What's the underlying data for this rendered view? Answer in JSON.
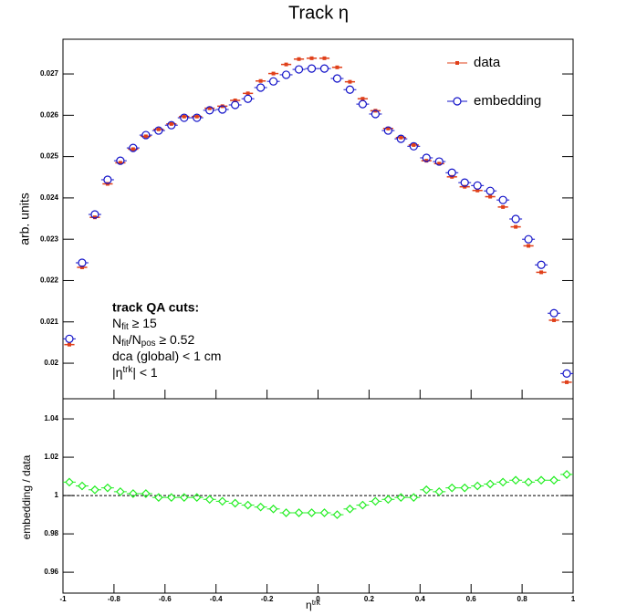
{
  "chart_data": [
    {
      "type": "scatter",
      "title": "Track η",
      "y_label": "arb. units",
      "x": [
        -0.975,
        -0.925,
        -0.875,
        -0.825,
        -0.775,
        -0.725,
        -0.675,
        -0.625,
        -0.575,
        -0.525,
        -0.475,
        -0.425,
        -0.375,
        -0.325,
        -0.275,
        -0.225,
        -0.175,
        -0.125,
        -0.075,
        -0.025,
        0.025,
        0.075,
        0.125,
        0.175,
        0.225,
        0.275,
        0.325,
        0.375,
        0.425,
        0.475,
        0.525,
        0.575,
        0.625,
        0.675,
        0.725,
        0.775,
        0.825,
        0.875,
        0.925,
        0.975
      ],
      "series": [
        {
          "name": "data",
          "color": "#e0401a",
          "marker": "square",
          "values": [
            0.02045,
            0.02232,
            0.02353,
            0.02434,
            0.02485,
            0.02518,
            0.02549,
            0.02566,
            0.02579,
            0.02597,
            0.02597,
            0.02617,
            0.02622,
            0.02636,
            0.02653,
            0.02683,
            0.02701,
            0.02723,
            0.02736,
            0.02738,
            0.02738,
            0.02716,
            0.02681,
            0.0264,
            0.02611,
            0.02568,
            0.02546,
            0.02528,
            0.0249,
            0.02483,
            0.02451,
            0.02427,
            0.02418,
            0.02403,
            0.02378,
            0.0233,
            0.02284,
            0.0222,
            0.02104,
            0.01954
          ]
        },
        {
          "name": "embedding",
          "color": "#1010c8",
          "marker": "circle",
          "values": [
            0.02059,
            0.02243,
            0.0236,
            0.02444,
            0.0249,
            0.02521,
            0.02552,
            0.02563,
            0.02576,
            0.02594,
            0.02594,
            0.02612,
            0.02614,
            0.02625,
            0.0264,
            0.02667,
            0.02682,
            0.02698,
            0.02711,
            0.02713,
            0.02713,
            0.02689,
            0.02662,
            0.02627,
            0.02603,
            0.02563,
            0.02543,
            0.02525,
            0.02497,
            0.02488,
            0.02461,
            0.02437,
            0.0243,
            0.02417,
            0.02395,
            0.02349,
            0.023,
            0.02238,
            0.02121,
            0.01975
          ]
        }
      ],
      "xlim": [
        -1,
        1
      ],
      "xticks": [
        -1,
        -0.8,
        -0.6,
        -0.4,
        -0.2,
        0,
        0.2,
        0.4,
        0.6,
        0.8,
        1
      ],
      "ylim": [
        0.01914,
        0.02784
      ],
      "yticks": [
        0.02,
        0.021,
        0.022,
        0.023,
        0.024,
        0.025,
        0.026,
        0.027
      ],
      "legend": "top-right",
      "annotation": {
        "title": "track QA cuts:",
        "lines": [
          [
            {
              "text": "N"
            },
            {
              "text": "fit",
              "sub": true
            },
            {
              "text": " ≥ 15"
            }
          ],
          [
            {
              "text": "N"
            },
            {
              "text": "fit",
              "sub": true
            },
            {
              "text": "/N"
            },
            {
              "text": "pos",
              "sub": true
            },
            {
              "text": " ≥ 0.52"
            }
          ],
          [
            {
              "text": "dca (global) < 1 cm"
            }
          ],
          [
            {
              "text": "|η"
            },
            {
              "text": "trk",
              "sup": true
            },
            {
              "text": "| < 1"
            }
          ]
        ]
      }
    },
    {
      "type": "scatter",
      "y_label": "embedding / data",
      "x_label": [
        {
          "text": "η"
        },
        {
          "text": "trk",
          "sup": true
        }
      ],
      "x": [
        -0.975,
        -0.925,
        -0.875,
        -0.825,
        -0.775,
        -0.725,
        -0.675,
        -0.625,
        -0.575,
        -0.525,
        -0.475,
        -0.425,
        -0.375,
        -0.325,
        -0.275,
        -0.225,
        -0.175,
        -0.125,
        -0.075,
        -0.025,
        0.025,
        0.075,
        0.125,
        0.175,
        0.225,
        0.275,
        0.325,
        0.375,
        0.425,
        0.475,
        0.525,
        0.575,
        0.625,
        0.675,
        0.725,
        0.775,
        0.825,
        0.875,
        0.925,
        0.975
      ],
      "color": "#22ee22",
      "values": [
        1.007,
        1.005,
        1.003,
        1.004,
        1.002,
        1.001,
        1.001,
        0.999,
        0.999,
        0.999,
        0.999,
        0.998,
        0.997,
        0.996,
        0.995,
        0.994,
        0.993,
        0.991,
        0.991,
        0.991,
        0.991,
        0.99,
        0.993,
        0.995,
        0.997,
        0.998,
        0.999,
        0.999,
        1.003,
        1.002,
        1.004,
        1.004,
        1.005,
        1.006,
        1.007,
        1.008,
        1.007,
        1.008,
        1.008,
        1.011
      ],
      "reference_line": 1,
      "xlim": [
        -1,
        1
      ],
      "xticks": [
        -1,
        -0.8,
        -0.6,
        -0.4,
        -0.2,
        0,
        0.2,
        0.4,
        0.6,
        0.8,
        1
      ],
      "ylim": [
        0.9491,
        1.0505
      ],
      "yticks": [
        0.96,
        0.98,
        1,
        1.02,
        1.04
      ]
    }
  ]
}
